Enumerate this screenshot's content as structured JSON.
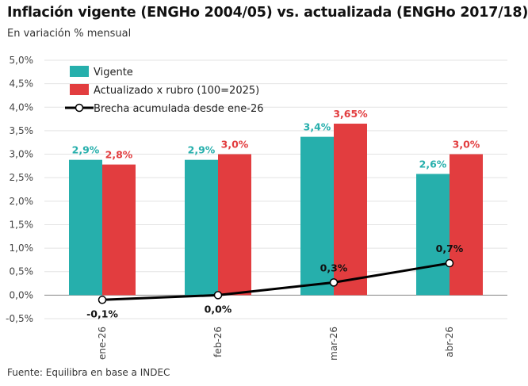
{
  "title": "Inflación vigente (ENGHo 2004/05) vs. actualizada (ENGHo 2017/18)",
  "subtitle": "En variación % mensual",
  "source": "Fuente: Equilibra en base a INDEC",
  "colors": {
    "vigente": "#26AFAC",
    "actualizado": "#E23D3F",
    "brecha": "#000000"
  },
  "chart_data": {
    "type": "bar",
    "categories": [
      "ene-26",
      "feb-26",
      "mar-26",
      "abr-26"
    ],
    "ylim": [
      -0.5,
      5.0
    ],
    "yticks": [
      -0.5,
      0.0,
      0.5,
      1.0,
      1.5,
      2.0,
      2.5,
      3.0,
      3.5,
      4.0,
      4.5,
      5.0
    ],
    "ytick_labels": [
      "-0,5%",
      "0,0%",
      "0,5%",
      "1,0%",
      "1,5%",
      "2,0%",
      "2,5%",
      "3,0%",
      "3,5%",
      "4,0%",
      "4,5%",
      "5,0%"
    ],
    "grid": true,
    "legend": "top-left",
    "series": [
      {
        "name": "Vigente",
        "kind": "bar",
        "values": [
          2.88,
          2.88,
          3.37,
          2.58
        ],
        "labels": [
          "2,9%",
          "2,9%",
          "3,4%",
          "2,6%"
        ]
      },
      {
        "name": "Actualizado x rubro (100=2025)",
        "kind": "bar",
        "values": [
          2.78,
          3.0,
          3.65,
          3.0
        ],
        "labels": [
          "2,8%",
          "3,0%",
          "3,65%",
          "3,0%"
        ]
      },
      {
        "name": "Brecha acumulada desde ene-26",
        "kind": "line",
        "values": [
          -0.1,
          0.0,
          0.27,
          0.68
        ],
        "labels": [
          "-0,1%",
          "0,0%",
          "0,3%",
          "0,7%"
        ]
      }
    ]
  }
}
